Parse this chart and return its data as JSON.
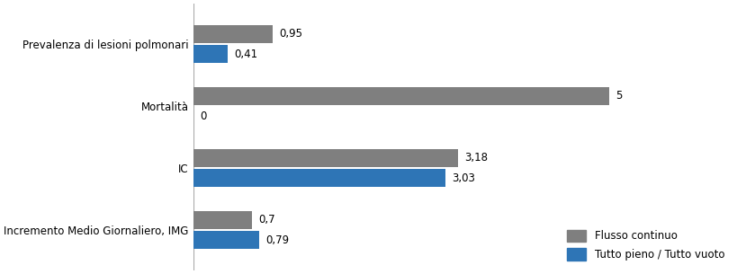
{
  "categories": [
    "Prevalenza di lesioni polmonari",
    "Mortalità",
    "IC",
    "Incremento Medio Giornaliero, IMG"
  ],
  "gray_values": [
    0.95,
    5,
    3.18,
    0.7
  ],
  "blue_values": [
    0.41,
    0,
    3.03,
    0.79
  ],
  "gray_labels": [
    "0,95",
    "5",
    "3,18",
    "0,7"
  ],
  "blue_labels": [
    "0,41",
    "0",
    "3,03",
    "0,79"
  ],
  "gray_color": "#7f7f7f",
  "blue_color": "#2e75b6",
  "legend_gray": "Flusso continuo",
  "legend_blue": "Tutto pieno / Tutto vuoto",
  "xlim_max": 6.5,
  "bar_height": 0.28,
  "figsize": [
    8.2,
    3.05
  ],
  "dpi": 100,
  "label_fontsize": 8.5,
  "value_fontsize": 8.5,
  "legend_fontsize": 8.5,
  "background_color": "#ffffff"
}
